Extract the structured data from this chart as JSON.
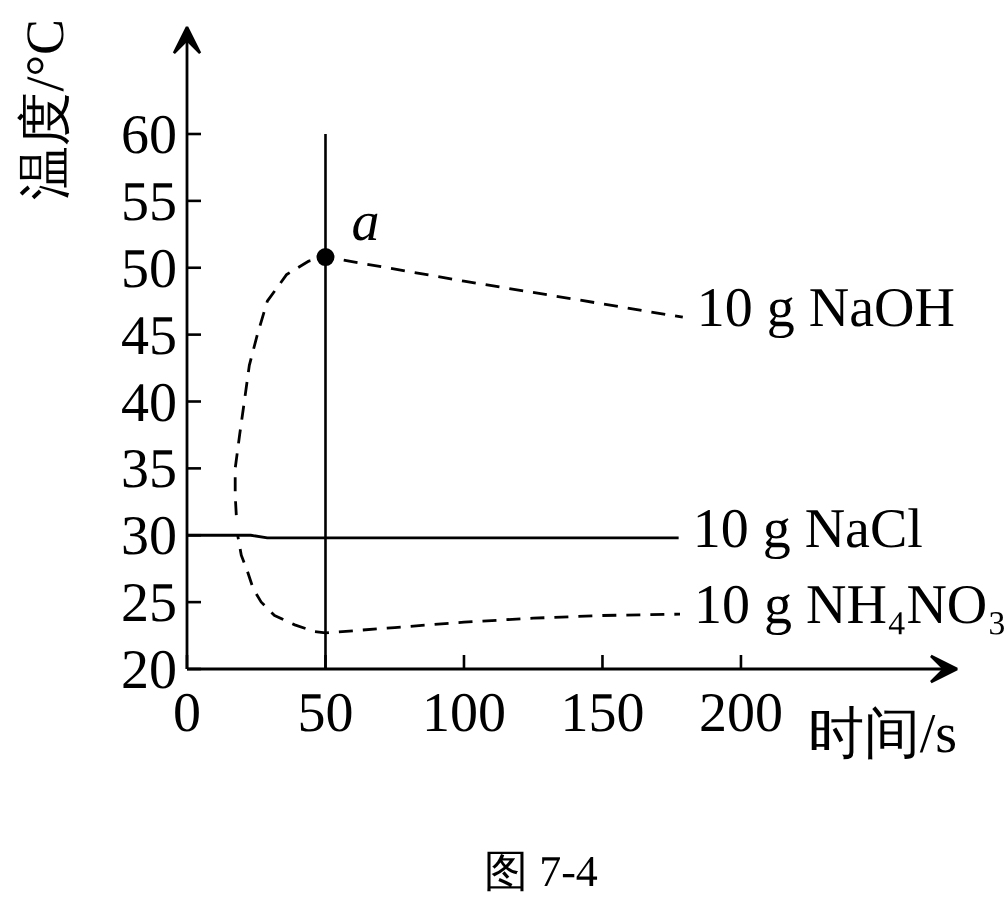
{
  "chart_data": {
    "type": "line",
    "xlabel": "时间/s",
    "ylabel": "温度/°C",
    "xlim": [
      0,
      278
    ],
    "ylim": [
      20,
      68
    ],
    "xticks": [
      0,
      50,
      100,
      150,
      200
    ],
    "yticks": [
      20,
      25,
      30,
      35,
      40,
      45,
      50,
      55,
      60
    ],
    "series": [
      {
        "name": "10 g NaOH",
        "color": "#000000",
        "line_style": "dashed",
        "x": [
          17.8,
          17.4,
          17.4,
          19,
          20.7,
          22.5,
          25.4,
          29,
          36,
          44,
          50,
          100,
          150,
          179
        ],
        "values": [
          31.5,
          33,
          35,
          37.5,
          40,
          42.7,
          45,
          47.5,
          49.5,
          50.5,
          50.8,
          49,
          47.3,
          46.3
        ]
      },
      {
        "name": "10 g NaCl",
        "color": "#000000",
        "line_style": "solid",
        "x": [
          0,
          23,
          29,
          177.5
        ],
        "values": [
          30,
          30,
          29.8,
          29.8
        ]
      },
      {
        "name": "10 g NH₄NO₃",
        "color": "#000000",
        "line_style": "dashed",
        "x": [
          18.3,
          19.6,
          21.5,
          23.9,
          26.8,
          31.6,
          38.9,
          46,
          50,
          75,
          100,
          125,
          150,
          178
        ],
        "values": [
          30,
          28.5,
          27.5,
          26,
          25,
          24,
          23.3,
          22.8,
          22.7,
          23.1,
          23.5,
          23.8,
          24,
          24.1
        ]
      }
    ],
    "ref_lines": [
      {
        "axis": "x",
        "value": 50,
        "color": "#000000",
        "line_style": "solid"
      }
    ],
    "annotations": [
      {
        "text": "a",
        "x": 50,
        "y": 50.8
      },
      "图 7-4"
    ]
  }
}
